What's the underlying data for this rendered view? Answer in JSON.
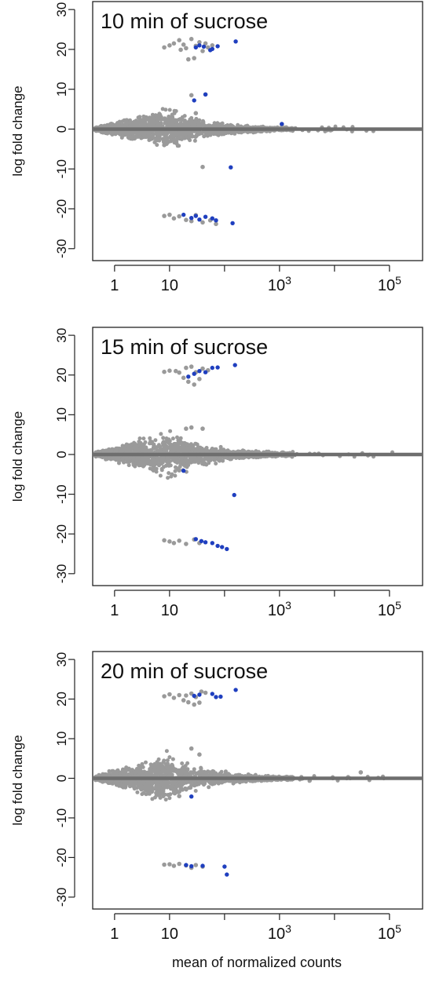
{
  "figure": {
    "shared_xlabel": "mean of normalized counts",
    "colors": {
      "background_points": "#9a9a9a",
      "significant_points": "#1f3fbf",
      "zero_line": "#6e6e6e",
      "axis": "#222222"
    }
  },
  "chart_data": [
    {
      "type": "scatter",
      "title": "10 min of sucrose",
      "xlabel": "",
      "ylabel": "log fold change",
      "x_scale": "log10",
      "xlim": [
        0.4,
        400000
      ],
      "ylim": [
        -33,
        32
      ],
      "x_ticks": [
        1,
        10,
        100,
        1000,
        10000,
        100000
      ],
      "x_tick_labels": [
        "1",
        "10",
        "",
        "10^3",
        "",
        "10^5"
      ],
      "y_ticks": [
        -30,
        -20,
        -10,
        0,
        10,
        20,
        30
      ],
      "y_tick_labels": [
        "-30",
        "-20",
        "-10",
        "0",
        "10",
        "20",
        "30"
      ],
      "zero_line": 0,
      "cloud_description": "dense gray funnel centred on 0, widest (about ±6) near 10 counts and narrowing toward high counts",
      "series": [
        {
          "name": "",
          "color": "#9a9a9a",
          "points": [
            [
              8,
              20.5
            ],
            [
              10,
              21.0
            ],
            [
              12,
              21.5
            ],
            [
              15,
              22.3
            ],
            [
              18,
              21.2
            ],
            [
              20,
              20.3
            ],
            [
              25,
              22.6
            ],
            [
              30,
              20.9
            ],
            [
              35,
              21.8
            ],
            [
              40,
              19.6
            ],
            [
              16,
              19.9
            ],
            [
              22,
              17.5
            ],
            [
              28,
              17.8
            ],
            [
              45,
              21.5
            ],
            [
              50,
              20.5
            ],
            [
              60,
              21.0
            ],
            [
              8,
              -21.8
            ],
            [
              10,
              -21.5
            ],
            [
              12,
              -22.4
            ],
            [
              15,
              -21.9
            ],
            [
              20,
              -22.8
            ],
            [
              25,
              -23.1
            ],
            [
              30,
              -21.6
            ],
            [
              40,
              -23.4
            ],
            [
              55,
              -22.9
            ],
            [
              70,
              -23.8
            ],
            [
              45,
              8.7
            ],
            [
              40,
              1.0
            ],
            [
              1100,
              1.2
            ],
            [
              15,
              -1.6
            ],
            [
              40,
              -9.5
            ],
            [
              8,
              -4.0
            ],
            [
              30,
              4.0
            ],
            [
              25,
              8.5
            ]
          ]
        },
        {
          "name": "",
          "color": "#1f3fbf",
          "points": [
            [
              30,
              20.5
            ],
            [
              35,
              21.0
            ],
            [
              42,
              20.7
            ],
            [
              55,
              19.8
            ],
            [
              60,
              20.1
            ],
            [
              75,
              20.8
            ],
            [
              160,
              22.0
            ],
            [
              45,
              8.7
            ],
            [
              28,
              7.2
            ],
            [
              1100,
              1.3
            ],
            [
              18,
              -21.5
            ],
            [
              25,
              -22.3
            ],
            [
              30,
              -21.8
            ],
            [
              35,
              -22.7
            ],
            [
              45,
              -22.0
            ],
            [
              60,
              -22.4
            ],
            [
              70,
              -22.9
            ],
            [
              140,
              -23.6
            ],
            [
              130,
              -9.6
            ]
          ]
        }
      ]
    },
    {
      "type": "scatter",
      "title": "15 min of sucrose",
      "xlabel": "",
      "ylabel": "log fold change",
      "x_scale": "log10",
      "xlim": [
        0.4,
        400000
      ],
      "ylim": [
        -33,
        32
      ],
      "x_ticks": [
        1,
        10,
        100,
        1000,
        10000,
        100000
      ],
      "x_tick_labels": [
        "1",
        "10",
        "",
        "10^3",
        "",
        "10^5"
      ],
      "y_ticks": [
        -30,
        -20,
        -10,
        0,
        10,
        20,
        30
      ],
      "y_tick_labels": [
        "-30",
        "-20",
        "-10",
        "0",
        "10",
        "20",
        "30"
      ],
      "zero_line": 0,
      "cloud_description": "dense gray funnel centred on 0, widest (about ±7) near 10 counts and narrowing toward high counts",
      "series": [
        {
          "name": "",
          "color": "#9a9a9a",
          "points": [
            [
              8,
              20.8
            ],
            [
              10,
              21.1
            ],
            [
              13,
              21.0
            ],
            [
              15,
              20.6
            ],
            [
              18,
              19.3
            ],
            [
              20,
              21.8
            ],
            [
              25,
              22.1
            ],
            [
              30,
              20.7
            ],
            [
              40,
              21.6
            ],
            [
              50,
              21.2
            ],
            [
              22,
              18.3
            ],
            [
              28,
              17.6
            ],
            [
              35,
              19.0
            ],
            [
              8,
              -21.6
            ],
            [
              10,
              -21.9
            ],
            [
              12,
              -22.3
            ],
            [
              15,
              -21.7
            ],
            [
              20,
              -22.5
            ],
            [
              28,
              -21.4
            ],
            [
              35,
              -22.3
            ],
            [
              15,
              -4.0
            ],
            [
              20,
              6.5
            ],
            [
              25,
              6.8
            ],
            [
              40,
              6.5
            ]
          ]
        },
        {
          "name": "",
          "color": "#1f3fbf",
          "points": [
            [
              22,
              19.6
            ],
            [
              28,
              20.3
            ],
            [
              35,
              21.0
            ],
            [
              45,
              20.7
            ],
            [
              60,
              21.8
            ],
            [
              75,
              21.9
            ],
            [
              155,
              22.5
            ],
            [
              18,
              -4.1
            ],
            [
              150,
              -10.2
            ],
            [
              30,
              -21.3
            ],
            [
              38,
              -21.8
            ],
            [
              45,
              -22.1
            ],
            [
              60,
              -22.3
            ],
            [
              75,
              -23.0
            ],
            [
              90,
              -23.3
            ],
            [
              110,
              -23.8
            ]
          ]
        }
      ]
    },
    {
      "type": "scatter",
      "title": "20 min of sucrose",
      "xlabel": "mean of normalized counts",
      "ylabel": "log fold change",
      "x_scale": "log10",
      "xlim": [
        0.4,
        400000
      ],
      "ylim": [
        -33,
        32
      ],
      "x_ticks": [
        1,
        10,
        100,
        1000,
        10000,
        100000
      ],
      "x_tick_labels": [
        "1",
        "10",
        "",
        "10^3",
        "",
        "10^5"
      ],
      "y_ticks": [
        -30,
        -20,
        -10,
        0,
        10,
        20,
        30
      ],
      "y_tick_labels": [
        "-30",
        "-20",
        "-10",
        "0",
        "10",
        "20",
        "30"
      ],
      "zero_line": 0,
      "cloud_description": "dense gray funnel centred on 0, widest (about ±7) near 10 counts and narrowing toward high counts, a few outliers up to about 30000 counts",
      "series": [
        {
          "name": "",
          "color": "#9a9a9a",
          "points": [
            [
              8,
              20.7
            ],
            [
              10,
              21.2
            ],
            [
              12,
              20.3
            ],
            [
              15,
              21.0
            ],
            [
              18,
              19.7
            ],
            [
              20,
              20.9
            ],
            [
              25,
              21.4
            ],
            [
              30,
              20.5
            ],
            [
              38,
              21.9
            ],
            [
              45,
              21.6
            ],
            [
              22,
              19.2
            ],
            [
              28,
              18.6
            ],
            [
              35,
              19.1
            ],
            [
              8,
              -21.8
            ],
            [
              10,
              -21.7
            ],
            [
              12,
              -22.1
            ],
            [
              15,
              -21.6
            ],
            [
              20,
              -22.0
            ],
            [
              25,
              -22.6
            ],
            [
              30,
              -21.9
            ],
            [
              40,
              -22.3
            ],
            [
              30000,
              1.5
            ],
            [
              15,
              -4.5
            ],
            [
              25,
              7.5
            ],
            [
              35,
              6.0
            ]
          ]
        },
        {
          "name": "",
          "color": "#1f3fbf",
          "points": [
            [
              28,
              20.8
            ],
            [
              35,
              21.1
            ],
            [
              60,
              21.3
            ],
            [
              70,
              20.5
            ],
            [
              85,
              20.6
            ],
            [
              160,
              22.3
            ],
            [
              25,
              -4.6
            ],
            [
              20,
              -21.9
            ],
            [
              25,
              -22.2
            ],
            [
              40,
              -22.1
            ],
            [
              100,
              -22.3
            ],
            [
              110,
              -24.3
            ]
          ]
        }
      ]
    }
  ]
}
